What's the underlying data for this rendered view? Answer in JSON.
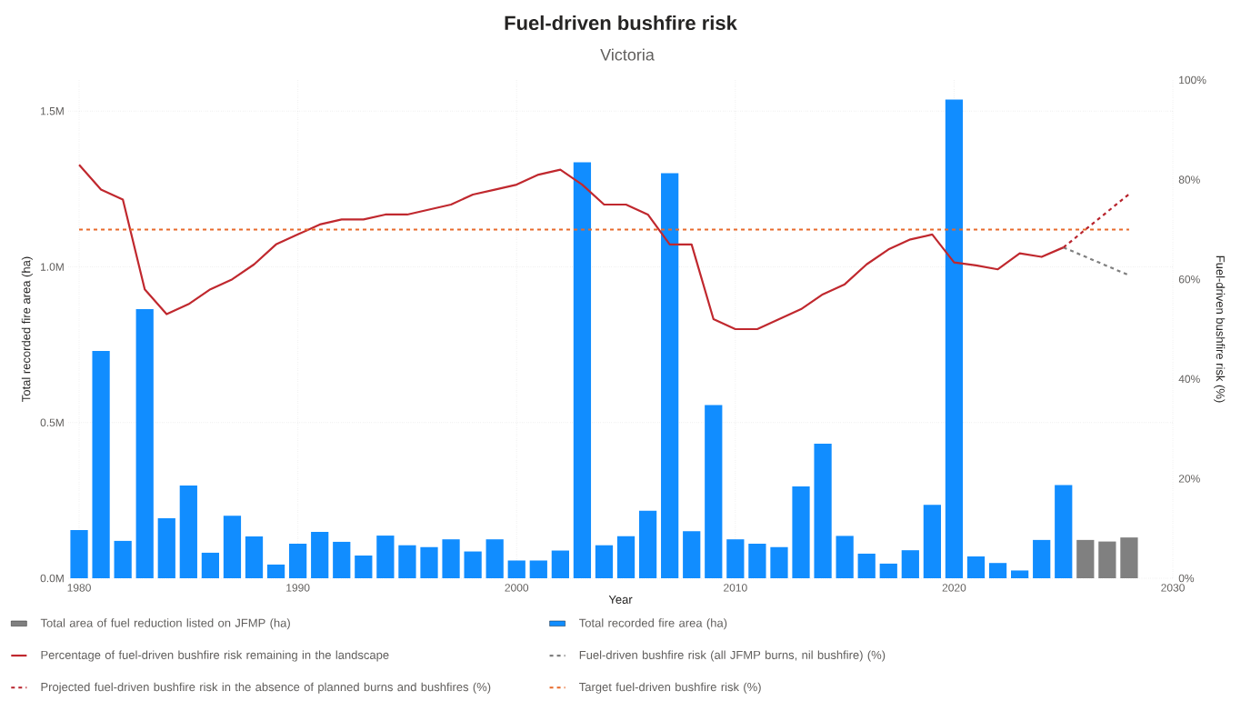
{
  "chart_data": {
    "type": "bar",
    "title": "Fuel-driven bushfire risk",
    "subtitle": "Victoria",
    "xlabel": "Year",
    "ylabel": "Total recorded fire area (ha)",
    "y2label": "Fuel-driven bushfire risk (%)",
    "xlim": [
      1979.5,
      2030
    ],
    "xticks": [
      1980,
      1990,
      2000,
      2010,
      2020,
      2030
    ],
    "ylim": [
      0,
      1600000
    ],
    "yticks": [
      {
        "value": 0,
        "label": "0.0M"
      },
      {
        "value": 500000,
        "label": "0.5M"
      },
      {
        "value": 1000000,
        "label": "1.0M"
      },
      {
        "value": 1500000,
        "label": "1.5M"
      }
    ],
    "y2lim": [
      0,
      100
    ],
    "y2ticks": [
      {
        "value": 0,
        "label": "0%"
      },
      {
        "value": 20,
        "label": "20%"
      },
      {
        "value": 40,
        "label": "40%"
      },
      {
        "value": 60,
        "label": "60%"
      },
      {
        "value": 80,
        "label": "80%"
      },
      {
        "value": 100,
        "label": "100%"
      }
    ],
    "grid": true,
    "legend": "bottom",
    "marker": "none",
    "series": [
      {
        "name": "Total area of fuel reduction listed on JFMP (ha)",
        "color": "#808080",
        "x": [
          2026,
          2027,
          2028
        ],
        "values": [
          123000,
          118000,
          131000
        ]
      },
      {
        "name": "Total recorded fire area (ha)",
        "color": "#118dff",
        "x": [
          1980,
          1981,
          1982,
          1983,
          1984,
          1985,
          1986,
          1987,
          1988,
          1989,
          1990,
          1991,
          1992,
          1993,
          1994,
          1995,
          1996,
          1997,
          1998,
          1999,
          2000,
          2001,
          2002,
          2003,
          2004,
          2005,
          2006,
          2007,
          2008,
          2009,
          2010,
          2011,
          2012,
          2013,
          2014,
          2015,
          2016,
          2017,
          2018,
          2019,
          2020,
          2021,
          2022,
          2023,
          2024,
          2025
        ],
        "values": [
          155000,
          730000,
          120000,
          864000,
          193000,
          298000,
          82000,
          201000,
          134000,
          44000,
          111000,
          149000,
          117000,
          73000,
          137000,
          106000,
          100000,
          125000,
          86000,
          125000,
          57000,
          57000,
          89000,
          1336000,
          106000,
          135000,
          217000,
          1301000,
          151000,
          556000,
          125000,
          111000,
          100000,
          295000,
          432000,
          136000,
          79000,
          47000,
          90000,
          236000,
          1537000,
          70000,
          49000,
          25000,
          123000,
          299000
        ]
      },
      {
        "name": "Percentage of fuel-driven bushfire risk remaining in the landscape",
        "type": "line",
        "axis": "y2",
        "color": "#c0282e",
        "line_style": "solid",
        "x": [
          1980,
          1981,
          1982,
          1983,
          1984,
          1985,
          1986,
          1987,
          1988,
          1989,
          1990,
          1991,
          1992,
          1993,
          1994,
          1995,
          1996,
          1997,
          1998,
          1999,
          2000,
          2001,
          2002,
          2003,
          2004,
          2005,
          2006,
          2007,
          2008,
          2009,
          2010,
          2011,
          2012,
          2013,
          2014,
          2015,
          2016,
          2017,
          2018,
          2019,
          2020,
          2021,
          2022,
          2023,
          2024,
          2025
        ],
        "values": [
          83,
          78,
          76,
          58,
          53,
          55,
          58,
          60,
          63,
          67,
          69,
          71,
          72,
          72,
          73,
          73,
          74,
          75,
          77,
          78,
          79,
          81,
          82,
          79,
          75,
          75,
          73,
          67,
          67,
          52,
          50,
          50,
          52,
          54,
          57,
          59,
          63,
          66,
          68,
          69,
          63.4,
          62.8,
          62,
          65.2,
          64.5,
          66.4
        ]
      },
      {
        "name": "Fuel-driven bushfire risk (all JFMP burns, nil bushfire) (%)",
        "type": "line",
        "axis": "y2",
        "color": "#7f7f7f",
        "line_style": "dashed",
        "x": [
          2025,
          2028
        ],
        "values": [
          66.4,
          60.8
        ]
      },
      {
        "name": "Projected fuel-driven bushfire risk in the absence of planned burns and bushfires (%)",
        "type": "line",
        "axis": "y2",
        "color": "#b8232c",
        "line_style": "dashed",
        "x": [
          2025,
          2028
        ],
        "values": [
          66.4,
          77.1
        ]
      }
    ],
    "ref_lines": [
      {
        "axis": "y2",
        "value": 70,
        "label": "Target fuel-driven bushfire risk (%)",
        "color": "#e8692a",
        "line_style": "dashed"
      }
    ]
  }
}
